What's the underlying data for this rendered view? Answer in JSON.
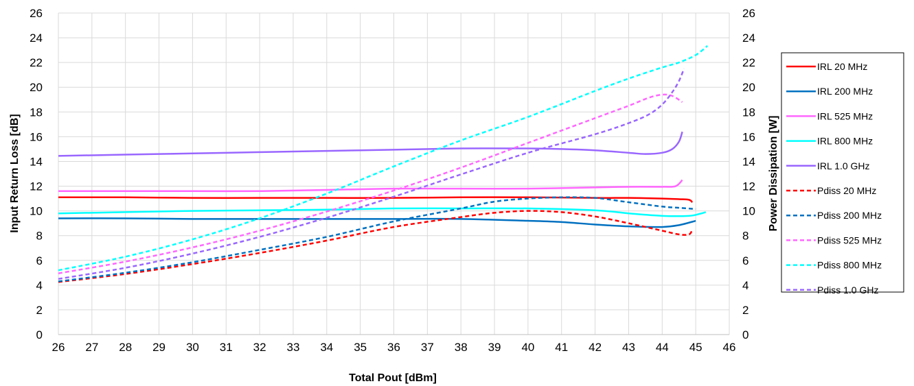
{
  "chart_data": {
    "type": "line",
    "title": "",
    "xlabel": "Total Pout [dBm]",
    "ylabel": "Input Return Loss [dB]",
    "y2label": "Power Dissipation [W]",
    "xlim": [
      26,
      46
    ],
    "ylim": [
      0,
      26
    ],
    "y2lim": [
      0,
      26
    ],
    "xticks": [
      "26",
      "27",
      "28",
      "29",
      "30",
      "31",
      "32",
      "33",
      "34",
      "35",
      "36",
      "37",
      "38",
      "39",
      "40",
      "41",
      "42",
      "43",
      "44",
      "45",
      "46"
    ],
    "yticks": [
      "0",
      "2",
      "4",
      "6",
      "8",
      "10",
      "12",
      "14",
      "16",
      "18",
      "20",
      "22",
      "24",
      "26"
    ],
    "grid": true,
    "legend_position": "right",
    "series": [
      {
        "name": "IRL 20 MHz",
        "axis": "left",
        "dash": "solid",
        "color": "#ff0000",
        "points": [
          [
            26,
            11.1
          ],
          [
            28,
            11.1
          ],
          [
            30,
            11.05
          ],
          [
            32,
            11.05
          ],
          [
            34,
            11.05
          ],
          [
            36,
            11.05
          ],
          [
            38,
            11.1
          ],
          [
            40,
            11.1
          ],
          [
            42,
            11.05
          ],
          [
            43,
            11.05
          ],
          [
            44,
            11.0
          ],
          [
            44.5,
            10.95
          ],
          [
            44.8,
            10.9
          ],
          [
            44.9,
            10.7
          ]
        ]
      },
      {
        "name": "IRL 200 MHz",
        "axis": "left",
        "dash": "solid",
        "color": "#0070c0",
        "points": [
          [
            26,
            9.4
          ],
          [
            28,
            9.4
          ],
          [
            30,
            9.35
          ],
          [
            32,
            9.35
          ],
          [
            34,
            9.35
          ],
          [
            36,
            9.35
          ],
          [
            38,
            9.35
          ],
          [
            40,
            9.2
          ],
          [
            41,
            9.1
          ],
          [
            42,
            8.9
          ],
          [
            43,
            8.75
          ],
          [
            44,
            8.7
          ],
          [
            44.5,
            8.85
          ],
          [
            45,
            9.2
          ]
        ]
      },
      {
        "name": "IRL 525 MHz",
        "axis": "left",
        "dash": "solid",
        "color": "#ff66ff",
        "points": [
          [
            26,
            11.6
          ],
          [
            28,
            11.6
          ],
          [
            30,
            11.6
          ],
          [
            32,
            11.6
          ],
          [
            34,
            11.7
          ],
          [
            36,
            11.8
          ],
          [
            38,
            11.8
          ],
          [
            40,
            11.8
          ],
          [
            42,
            11.9
          ],
          [
            43,
            11.95
          ],
          [
            44,
            11.95
          ],
          [
            44.4,
            12.0
          ],
          [
            44.6,
            12.5
          ]
        ]
      },
      {
        "name": "IRL 800 MHz",
        "axis": "left",
        "dash": "solid",
        "color": "#00ffff",
        "points": [
          [
            26,
            9.8
          ],
          [
            28,
            9.9
          ],
          [
            30,
            10.0
          ],
          [
            32,
            10.05
          ],
          [
            34,
            10.1
          ],
          [
            36,
            10.2
          ],
          [
            38,
            10.2
          ],
          [
            40,
            10.2
          ],
          [
            42,
            10.05
          ],
          [
            43,
            9.8
          ],
          [
            44,
            9.6
          ],
          [
            44.8,
            9.6
          ],
          [
            45.1,
            9.75
          ],
          [
            45.3,
            9.9
          ]
        ]
      },
      {
        "name": "IRL 1.0 GHz",
        "axis": "left",
        "dash": "solid",
        "color": "#9966ff",
        "points": [
          [
            26,
            14.45
          ],
          [
            28,
            14.55
          ],
          [
            30,
            14.65
          ],
          [
            32,
            14.75
          ],
          [
            34,
            14.85
          ],
          [
            36,
            14.95
          ],
          [
            38,
            15.05
          ],
          [
            40,
            15.05
          ],
          [
            41,
            15.0
          ],
          [
            42,
            14.9
          ],
          [
            43,
            14.7
          ],
          [
            43.5,
            14.6
          ],
          [
            44,
            14.7
          ],
          [
            44.3,
            15.0
          ],
          [
            44.5,
            15.6
          ],
          [
            44.6,
            16.4
          ]
        ]
      },
      {
        "name": "Pdiss 20 MHz",
        "axis": "right",
        "dash": "dashed",
        "color": "#ff0000",
        "points": [
          [
            26,
            4.25
          ],
          [
            28,
            4.9
          ],
          [
            30,
            5.7
          ],
          [
            32,
            6.6
          ],
          [
            34,
            7.6
          ],
          [
            36,
            8.7
          ],
          [
            38,
            9.5
          ],
          [
            39,
            9.85
          ],
          [
            40,
            10.0
          ],
          [
            41,
            9.9
          ],
          [
            42,
            9.55
          ],
          [
            43,
            9.0
          ],
          [
            44,
            8.4
          ],
          [
            44.5,
            8.1
          ],
          [
            44.8,
            8.1
          ],
          [
            44.9,
            8.5
          ]
        ]
      },
      {
        "name": "Pdiss 200 MHz",
        "axis": "right",
        "dash": "dashed",
        "color": "#0070c0",
        "points": [
          [
            26,
            4.3
          ],
          [
            28,
            5.0
          ],
          [
            30,
            5.85
          ],
          [
            32,
            6.85
          ],
          [
            34,
            7.9
          ],
          [
            36,
            9.15
          ],
          [
            38,
            10.2
          ],
          [
            39,
            10.75
          ],
          [
            40,
            11.0
          ],
          [
            41,
            11.1
          ],
          [
            42,
            11.05
          ],
          [
            43,
            10.7
          ],
          [
            44,
            10.35
          ],
          [
            44.5,
            10.25
          ],
          [
            45,
            10.15
          ]
        ]
      },
      {
        "name": "Pdiss 525 MHz",
        "axis": "right",
        "dash": "dashed",
        "color": "#ff66ff",
        "points": [
          [
            26,
            4.95
          ],
          [
            28,
            5.9
          ],
          [
            30,
            7.05
          ],
          [
            32,
            8.4
          ],
          [
            34,
            9.95
          ],
          [
            36,
            11.65
          ],
          [
            38,
            13.5
          ],
          [
            40,
            15.5
          ],
          [
            42,
            17.5
          ],
          [
            43,
            18.5
          ],
          [
            43.6,
            19.15
          ],
          [
            44,
            19.4
          ],
          [
            44.3,
            19.3
          ],
          [
            44.6,
            18.8
          ]
        ]
      },
      {
        "name": "Pdiss 800 MHz",
        "axis": "right",
        "dash": "dashed",
        "color": "#00ffff",
        "points": [
          [
            26,
            5.2
          ],
          [
            28,
            6.3
          ],
          [
            30,
            7.7
          ],
          [
            32,
            9.4
          ],
          [
            34,
            11.4
          ],
          [
            36,
            13.6
          ],
          [
            38,
            15.7
          ],
          [
            40,
            17.6
          ],
          [
            42,
            19.7
          ],
          [
            43,
            20.7
          ],
          [
            44,
            21.6
          ],
          [
            44.5,
            22.0
          ],
          [
            45,
            22.6
          ],
          [
            45.35,
            23.35
          ]
        ]
      },
      {
        "name": "Pdiss 1.0 GHz",
        "axis": "right",
        "dash": "dashed",
        "color": "#9966ff",
        "points": [
          [
            26,
            4.5
          ],
          [
            28,
            5.4
          ],
          [
            30,
            6.55
          ],
          [
            32,
            7.9
          ],
          [
            34,
            9.45
          ],
          [
            36,
            11.15
          ],
          [
            38,
            12.95
          ],
          [
            40,
            14.7
          ],
          [
            42,
            16.2
          ],
          [
            43,
            17.1
          ],
          [
            43.6,
            17.8
          ],
          [
            44,
            18.6
          ],
          [
            44.3,
            19.6
          ],
          [
            44.5,
            20.5
          ],
          [
            44.65,
            21.5
          ]
        ]
      }
    ]
  }
}
